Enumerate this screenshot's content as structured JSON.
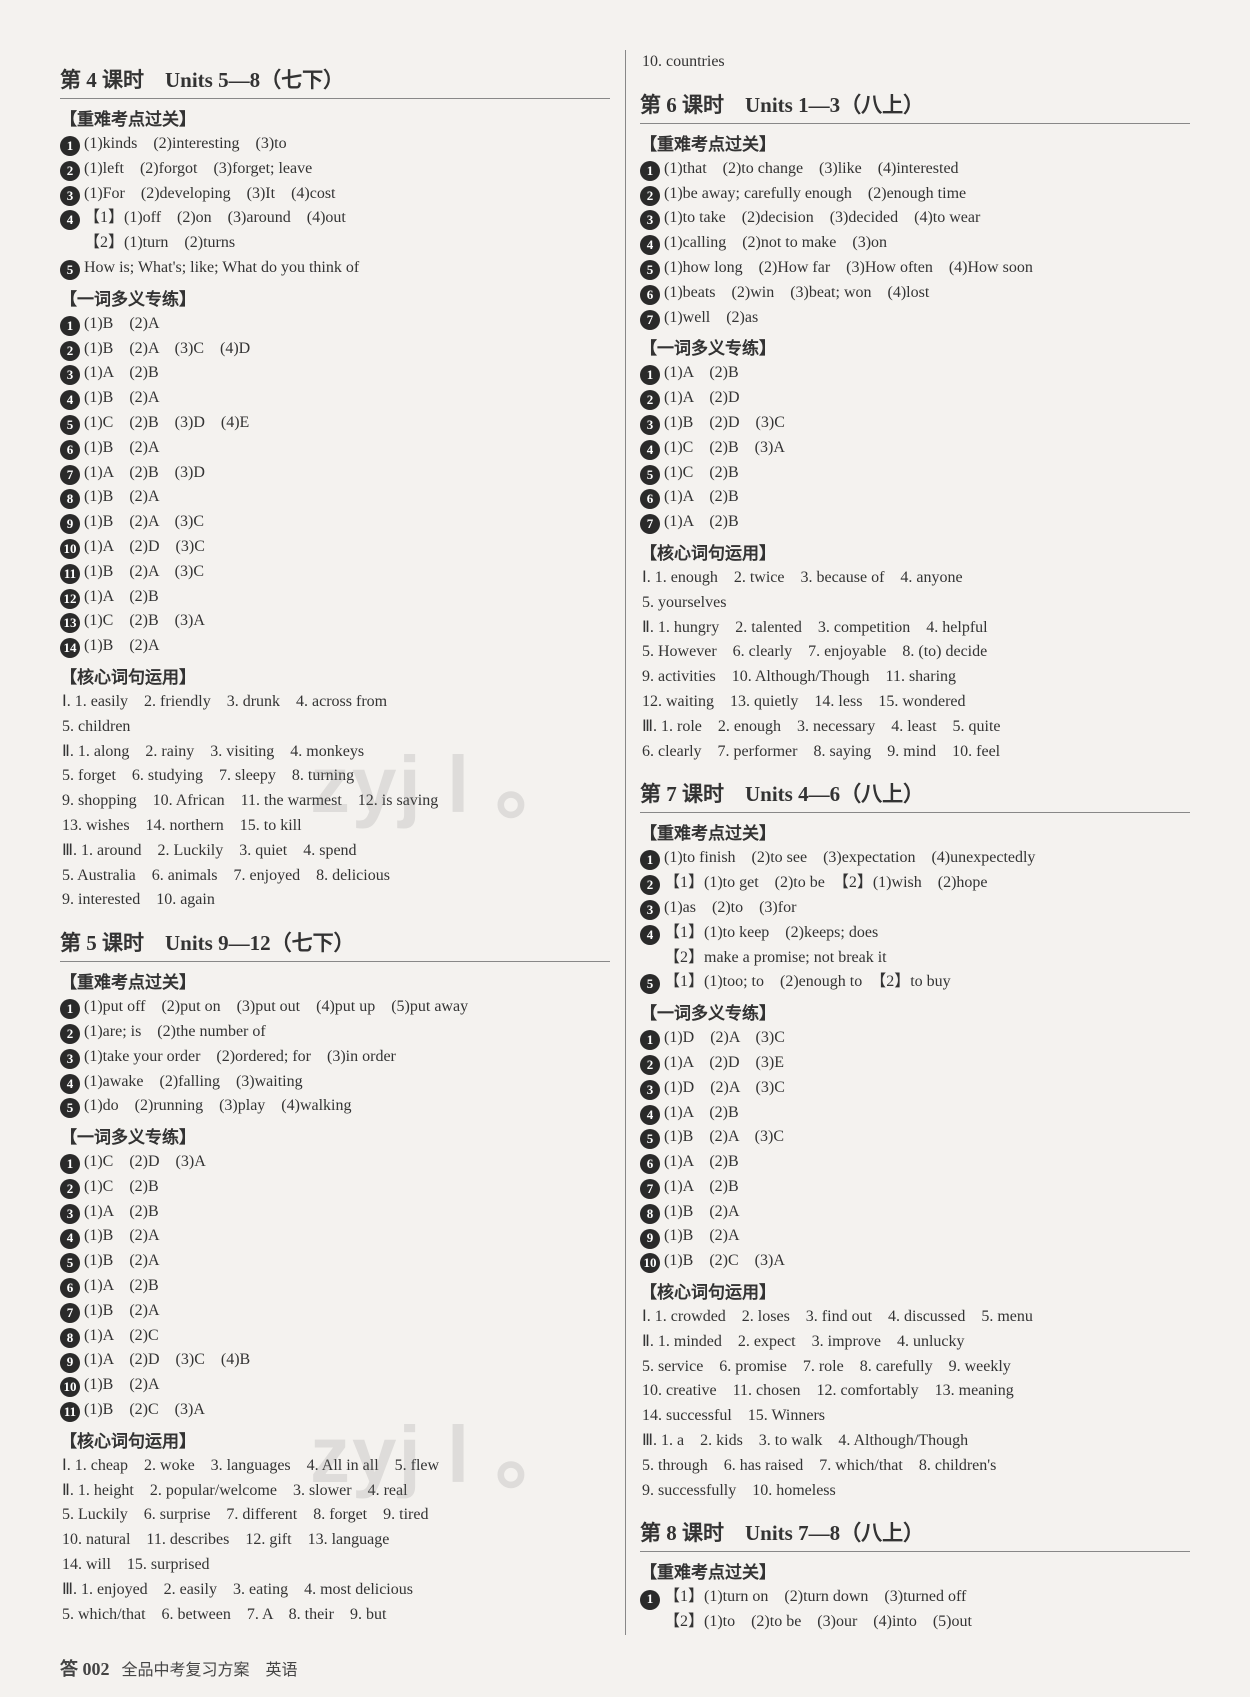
{
  "footer": {
    "page_label": "答 002",
    "book_title": "全品中考复习方案　英语"
  },
  "watermark_text": "zyj l 。",
  "left": {
    "lesson4": {
      "title": "第 4 课时　Units 5—8（七下）",
      "sec1_header": "【重难考点过关】",
      "sec1": [
        {
          "n": "1",
          "t": "(1)kinds　(2)interesting　(3)to"
        },
        {
          "n": "2",
          "t": "(1)left　(2)forgot　(3)forget; leave"
        },
        {
          "n": "3",
          "t": "(1)For　(2)developing　(3)It　(4)cost"
        },
        {
          "n": "4",
          "t": "【1】(1)off　(2)on　(3)around　(4)out"
        },
        {
          "n": "",
          "t": "【2】(1)turn　(2)turns"
        },
        {
          "n": "5",
          "t": "How is; What's; like; What do you think of"
        }
      ],
      "sec2_header": "【一词多义专练】",
      "sec2": [
        {
          "n": "1",
          "t": "(1)B　(2)A"
        },
        {
          "n": "2",
          "t": "(1)B　(2)A　(3)C　(4)D"
        },
        {
          "n": "3",
          "t": "(1)A　(2)B"
        },
        {
          "n": "4",
          "t": "(1)B　(2)A"
        },
        {
          "n": "5",
          "t": "(1)C　(2)B　(3)D　(4)E"
        },
        {
          "n": "6",
          "t": "(1)B　(2)A"
        },
        {
          "n": "7",
          "t": "(1)A　(2)B　(3)D"
        },
        {
          "n": "8",
          "t": "(1)B　(2)A"
        },
        {
          "n": "9",
          "t": "(1)B　(2)A　(3)C"
        },
        {
          "n": "10",
          "t": "(1)A　(2)D　(3)C"
        },
        {
          "n": "11",
          "t": "(1)B　(2)A　(3)C"
        },
        {
          "n": "12",
          "t": "(1)A　(2)B"
        },
        {
          "n": "13",
          "t": "(1)C　(2)B　(3)A"
        },
        {
          "n": "14",
          "t": "(1)B　(2)A"
        }
      ],
      "sec3_header": "【核心词句运用】",
      "sec3": [
        "Ⅰ. 1. easily　2. friendly　3. drunk　4. across from",
        "5. children",
        "Ⅱ. 1. along　2. rainy　3. visiting　4. monkeys",
        "5. forget　6. studying　7. sleepy　8. turning",
        "9. shopping　10. African　11. the warmest　12. is saving",
        "13. wishes　14. northern　15. to kill",
        "Ⅲ. 1. around　2. Luckily　3. quiet　4. spend",
        "5. Australia　6. animals　7. enjoyed　8. delicious",
        "9. interested　10. again"
      ]
    },
    "lesson5": {
      "title": "第 5 课时　Units 9—12（七下）",
      "sec1_header": "【重难考点过关】",
      "sec1": [
        {
          "n": "1",
          "t": "(1)put off　(2)put on　(3)put out　(4)put up　(5)put away"
        },
        {
          "n": "2",
          "t": "(1)are; is　(2)the number of"
        },
        {
          "n": "3",
          "t": "(1)take your order　(2)ordered; for　(3)in order"
        },
        {
          "n": "4",
          "t": "(1)awake　(2)falling　(3)waiting"
        },
        {
          "n": "5",
          "t": "(1)do　(2)running　(3)play　(4)walking"
        }
      ],
      "sec2_header": "【一词多义专练】",
      "sec2": [
        {
          "n": "1",
          "t": "(1)C　(2)D　(3)A"
        },
        {
          "n": "2",
          "t": "(1)C　(2)B"
        },
        {
          "n": "3",
          "t": "(1)A　(2)B"
        },
        {
          "n": "4",
          "t": "(1)B　(2)A"
        },
        {
          "n": "5",
          "t": "(1)B　(2)A"
        },
        {
          "n": "6",
          "t": "(1)A　(2)B"
        },
        {
          "n": "7",
          "t": "(1)B　(2)A"
        },
        {
          "n": "8",
          "t": "(1)A　(2)C"
        },
        {
          "n": "9",
          "t": "(1)A　(2)D　(3)C　(4)B"
        },
        {
          "n": "10",
          "t": "(1)B　(2)A"
        },
        {
          "n": "11",
          "t": "(1)B　(2)C　(3)A"
        }
      ],
      "sec3_header": "【核心词句运用】",
      "sec3": [
        "Ⅰ. 1. cheap　2. woke　3. languages　4. All in all　5. flew",
        "Ⅱ. 1. height　2. popular/welcome　3. slower　4. real",
        "5. Luckily　6. surprise　7. different　8. forget　9. tired",
        "10. natural　11. describes　12. gift　13. language",
        "14. will　15. surprised",
        "Ⅲ. 1. enjoyed　2. easily　3. eating　4. most delicious",
        "5. which/that　6. between　7. A　8. their　9. but"
      ]
    }
  },
  "right": {
    "top_line": "10. countries",
    "lesson6": {
      "title": "第 6 课时　Units 1—3（八上）",
      "sec1_header": "【重难考点过关】",
      "sec1": [
        {
          "n": "1",
          "t": "(1)that　(2)to change　(3)like　(4)interested"
        },
        {
          "n": "2",
          "t": "(1)be away; carefully enough　(2)enough time"
        },
        {
          "n": "3",
          "t": "(1)to take　(2)decision　(3)decided　(4)to wear"
        },
        {
          "n": "4",
          "t": "(1)calling　(2)not to make　(3)on"
        },
        {
          "n": "5",
          "t": "(1)how long　(2)How far　(3)How often　(4)How soon"
        },
        {
          "n": "6",
          "t": "(1)beats　(2)win　(3)beat; won　(4)lost"
        },
        {
          "n": "7",
          "t": "(1)well　(2)as"
        }
      ],
      "sec2_header": "【一词多义专练】",
      "sec2": [
        {
          "n": "1",
          "t": "(1)A　(2)B"
        },
        {
          "n": "2",
          "t": "(1)A　(2)D"
        },
        {
          "n": "3",
          "t": "(1)B　(2)D　(3)C"
        },
        {
          "n": "4",
          "t": "(1)C　(2)B　(3)A"
        },
        {
          "n": "5",
          "t": "(1)C　(2)B"
        },
        {
          "n": "6",
          "t": "(1)A　(2)B"
        },
        {
          "n": "7",
          "t": "(1)A　(2)B"
        }
      ],
      "sec3_header": "【核心词句运用】",
      "sec3": [
        "Ⅰ. 1. enough　2. twice　3. because of　4. anyone",
        "5. yourselves",
        "Ⅱ. 1. hungry　2. talented　3. competition　4. helpful",
        "5. However　6. clearly　7. enjoyable　8. (to) decide",
        "9. activities　10. Although/Though　11. sharing",
        "12. waiting　13. quietly　14. less　15. wondered",
        "Ⅲ. 1. role　2. enough　3. necessary　4. least　5. quite",
        "6. clearly　7. performer　8. saying　9. mind　10. feel"
      ]
    },
    "lesson7": {
      "title": "第 7 课时　Units 4—6（八上）",
      "sec1_header": "【重难考点过关】",
      "sec1": [
        {
          "n": "1",
          "t": "(1)to finish　(2)to see　(3)expectation　(4)unexpectedly"
        },
        {
          "n": "2",
          "t": "【1】(1)to get　(2)to be　【2】(1)wish　(2)hope"
        },
        {
          "n": "3",
          "t": "(1)as　(2)to　(3)for"
        },
        {
          "n": "4",
          "t": "【1】(1)to keep　(2)keeps; does"
        },
        {
          "n": "",
          "t": "【2】make a promise; not break it"
        },
        {
          "n": "5",
          "t": "【1】(1)too; to　(2)enough to　【2】to buy"
        }
      ],
      "sec2_header": "【一词多义专练】",
      "sec2": [
        {
          "n": "1",
          "t": "(1)D　(2)A　(3)C"
        },
        {
          "n": "2",
          "t": "(1)A　(2)D　(3)E"
        },
        {
          "n": "3",
          "t": "(1)D　(2)A　(3)C"
        },
        {
          "n": "4",
          "t": "(1)A　(2)B"
        },
        {
          "n": "5",
          "t": "(1)B　(2)A　(3)C"
        },
        {
          "n": "6",
          "t": "(1)A　(2)B"
        },
        {
          "n": "7",
          "t": "(1)A　(2)B"
        },
        {
          "n": "8",
          "t": "(1)B　(2)A"
        },
        {
          "n": "9",
          "t": "(1)B　(2)A"
        },
        {
          "n": "10",
          "t": "(1)B　(2)C　(3)A"
        }
      ],
      "sec3_header": "【核心词句运用】",
      "sec3": [
        "Ⅰ. 1. crowded　2. loses　3. find out　4. discussed　5. menu",
        "Ⅱ. 1. minded　2. expect　3. improve　4. unlucky",
        "5. service　6. promise　7. role　8. carefully　9. weekly",
        "10. creative　11. chosen　12. comfortably　13. meaning",
        "14. successful　15. Winners",
        "Ⅲ. 1. a　2. kids　3. to walk　4. Although/Though",
        "5. through　6. has raised　7. which/that　8. children's",
        "9. successfully　10. homeless"
      ]
    },
    "lesson8": {
      "title": "第 8 课时　Units 7—8（八上）",
      "sec1_header": "【重难考点过关】",
      "sec1": [
        {
          "n": "1",
          "t": "【1】(1)turn on　(2)turn down　(3)turned off"
        },
        {
          "n": "",
          "t": "【2】(1)to　(2)to be　(3)our　(4)into　(5)out"
        }
      ]
    }
  }
}
